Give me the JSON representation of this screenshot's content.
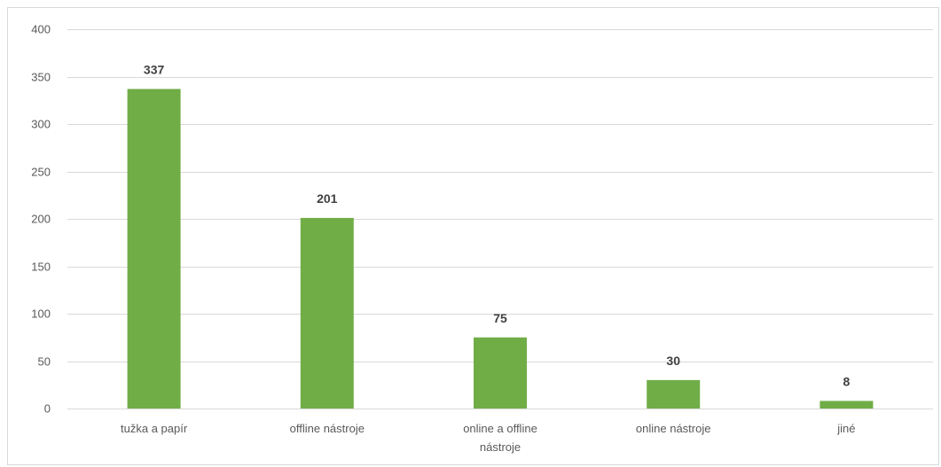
{
  "chart_data": {
    "type": "bar",
    "categories": [
      "tužka a papír",
      "offline nástroje",
      "online a offline nástroje",
      "online nástroje",
      "jiné"
    ],
    "category_lines": [
      [
        "tužka a papír"
      ],
      [
        "offline nástroje"
      ],
      [
        "online a offline",
        "nástroje"
      ],
      [
        "online nástroje"
      ],
      [
        "jiné"
      ]
    ],
    "values": [
      337,
      201,
      75,
      30,
      8
    ],
    "data_labels": [
      "337",
      "201",
      "75",
      "30",
      "8"
    ],
    "title": "",
    "xlabel": "",
    "ylabel": "",
    "ylim": [
      0,
      400
    ],
    "yticks": [
      0,
      50,
      100,
      150,
      200,
      250,
      300,
      350,
      400
    ],
    "ytick_labels": [
      "0",
      "50",
      "100",
      "150",
      "200",
      "250",
      "300",
      "350",
      "400"
    ],
    "grid": true,
    "legend": "none",
    "bar_color": "#70ad47",
    "grid_color": "#d9d9d9",
    "axis_color": "#d9d9d9",
    "label_color": "#595959",
    "data_label_color": "#404040"
  }
}
